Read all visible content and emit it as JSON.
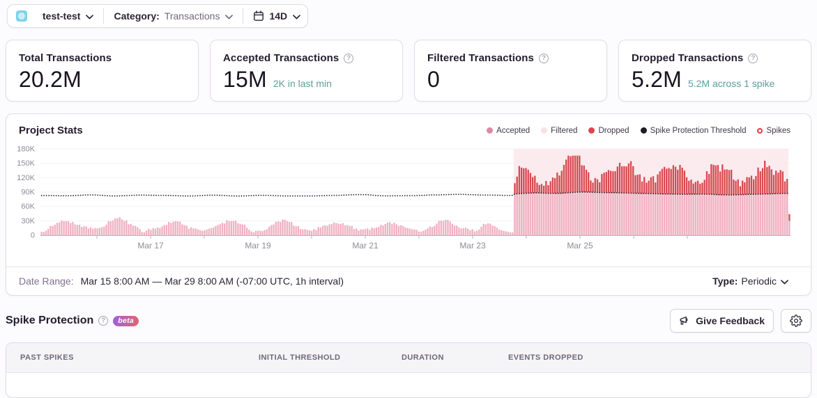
{
  "filter_bar": {
    "project": {
      "icon": "react-platform-icon",
      "name": "test-test"
    },
    "category_label": "Category:",
    "category_value": "Transactions",
    "date_range_value": "14D"
  },
  "cards": [
    {
      "title": "Total Transactions",
      "has_help": false,
      "value": "20.2M",
      "subtext": ""
    },
    {
      "title": "Accepted Transactions",
      "has_help": true,
      "value": "15M",
      "subtext": "2K in last min"
    },
    {
      "title": "Filtered Transactions",
      "has_help": true,
      "value": "0",
      "subtext": ""
    },
    {
      "title": "Dropped Transactions",
      "has_help": true,
      "value": "5.2M",
      "subtext": "5.2M across 1 spike"
    }
  ],
  "chart_panel": {
    "title": "Project Stats",
    "legend": [
      {
        "label": "Accepted",
        "marker": "dot",
        "color": "#da8ba2"
      },
      {
        "label": "Filtered",
        "marker": "dot",
        "color": "#f7e2e8"
      },
      {
        "label": "Dropped",
        "marker": "dot",
        "color": "#dd4550"
      },
      {
        "label": "Spike Protection Threshold",
        "marker": "dot",
        "color": "#1f1a24"
      },
      {
        "label": "Spikes",
        "marker": "ring",
        "color": "#e03e48"
      }
    ],
    "footer": {
      "date_range_label": "Date Range:",
      "date_range_value": "Mar 15 8:00 AM — Mar 29 8:00 AM (-07:00 UTC, 1h interval)",
      "type_label": "Type:",
      "type_value": "Periodic"
    }
  },
  "chart_data": {
    "type": "bar",
    "subtype": "stacked-hourly",
    "interval": "1h",
    "x_start": "Mar 15 8:00 AM",
    "x_end": "Mar 29 8:00 AM",
    "unit": "thousands of transactions",
    "ylim": [
      0,
      180
    ],
    "y_ticks": [
      {
        "value": 0,
        "label": "0"
      },
      {
        "value": 30,
        "label": "30K"
      },
      {
        "value": 60,
        "label": "60K"
      },
      {
        "value": 90,
        "label": "90K"
      },
      {
        "value": 120,
        "label": "120K"
      },
      {
        "value": 150,
        "label": "150K"
      },
      {
        "value": 180,
        "label": "180K"
      }
    ],
    "x_ticks": [
      {
        "day": "Mar 16",
        "label": ""
      },
      {
        "day": "Mar 17",
        "label": "Mar 17"
      },
      {
        "day": "Mar 18",
        "label": ""
      },
      {
        "day": "Mar 19",
        "label": "Mar 19"
      },
      {
        "day": "Mar 20",
        "label": ""
      },
      {
        "day": "Mar 21",
        "label": "Mar 21"
      },
      {
        "day": "Mar 22",
        "label": ""
      },
      {
        "day": "Mar 23",
        "label": "Mar 23"
      },
      {
        "day": "Mar 24",
        "label": ""
      },
      {
        "day": "Mar 25",
        "label": "Mar 25"
      },
      {
        "day": "Mar 26",
        "label": ""
      },
      {
        "day": "Mar 27",
        "label": ""
      }
    ],
    "spike_region": {
      "start_index": 212,
      "end_index": 334
    },
    "series": [
      {
        "name": "Accepted",
        "color": "#f0b0c1",
        "values": [
          7.1,
          6.9,
          9.2,
          12.8,
          19.3,
          18.9,
          21.8,
          25.7,
          26.6,
          30.6,
          29.2,
          29.2,
          29.5,
          25.5,
          27.6,
          22.7,
          21.3,
          21.7,
          17.1,
          18.7,
          18.3,
          13.8,
          16.4,
          13.4,
          15.0,
          14.0,
          15.2,
          16.7,
          17.9,
          21.9,
          29.2,
          28.9,
          30.7,
          35.3,
          34.8,
          37.6,
          33.0,
          29.7,
          30.7,
          22.7,
          23.6,
          19.9,
          19.6,
          16.7,
          12.6,
          6.8,
          6.0,
          9.6,
          13.5,
          11.1,
          14.7,
          13.7,
          15.9,
          15.0,
          18.3,
          21.2,
          21.7,
          27.7,
          25.5,
          28.0,
          28.9,
          28.8,
          28.4,
          22.6,
          21.2,
          19.8,
          13.2,
          16.4,
          14.0,
          14.1,
          12.3,
          10.5,
          9.0,
          10.3,
          11.9,
          13.5,
          14.7,
          16.0,
          19.0,
          21.3,
          23.1,
          25.8,
          24.4,
          31.4,
          29.5,
          29.2,
          29.6,
          29.9,
          24.8,
          23.7,
          22.5,
          22.0,
          15.5,
          11.5,
          8.0,
          6.0,
          9.0,
          9.6,
          9.2,
          8.6,
          10.6,
          12.4,
          17.8,
          21.4,
          22.5,
          28.1,
          28.9,
          27.7,
          32.5,
          32.3,
          29.3,
          27.7,
          27.4,
          19.9,
          18.6,
          19.0,
          12.6,
          11.9,
          12.6,
          11.1,
          10.2,
          9.1,
          12.8,
          10.7,
          16.6,
          16.1,
          19.4,
          20.4,
          19.5,
          22.7,
          23.2,
          26.6,
          25.4,
          24.2,
          23.5,
          25.3,
          20.5,
          20.9,
          19.4,
          19.3,
          12.9,
          14.0,
          9.8,
          11.9,
          11.9,
          12.7,
          14.1,
          11.0,
          15.8,
          14.2,
          16.5,
          17.0,
          21.5,
          20.1,
          23.3,
          26.3,
          27.1,
          23.3,
          26.1,
          22.7,
          19.5,
          20.9,
          19.2,
          16.0,
          14.8,
          13.8,
          12.4,
          12.0,
          11.3,
          7.8,
          7.4,
          9.0,
          11.4,
          14.3,
          18.2,
          16.9,
          19.4,
          24.1,
          30.0,
          30.5,
          29.8,
          32.0,
          32.0,
          28.7,
          23.9,
          20.2,
          19.9,
          15.9,
          14.0,
          14.4,
          15.5,
          13.4,
          10.3,
          12.6,
          7.8,
          9.2,
          11.8,
          17.5,
          23.7,
          22.5,
          24.8,
          23.8,
          19.9,
          18.8,
          15.8,
          11.7,
          10.4,
          9.1,
          8.0,
          7.1,
          6.0,
          6.0,
          86.0,
          86.3,
          86.6,
          86.9,
          87.2,
          87.5,
          87.8,
          88.0,
          88.1,
          88.2,
          88.2,
          88.1,
          88.0,
          87.8,
          87.6,
          87.4,
          87.3,
          87.2,
          87.2,
          87.2,
          87.4,
          87.6,
          87.9,
          88.2,
          88.5,
          88.9,
          89.2,
          89.5,
          89.7,
          89.9,
          90.0,
          90.0,
          90.0,
          89.9,
          89.7,
          89.6,
          89.4,
          89.2,
          89.0,
          88.9,
          88.8,
          88.7,
          88.7,
          88.6,
          88.6,
          88.5,
          88.4,
          88.2,
          88.1,
          88.0,
          87.9,
          87.8,
          87.7,
          87.6,
          87.5,
          87.4,
          87.3,
          87.1,
          87.0,
          86.9,
          86.8,
          86.6,
          86.5,
          86.4,
          86.3,
          86.2,
          86.1,
          86.0,
          86.0,
          85.9,
          85.8,
          85.8,
          85.7,
          85.6,
          85.5,
          85.4,
          85.4,
          85.4,
          85.5,
          85.5,
          85.6,
          85.7,
          85.7,
          85.8,
          85.8,
          85.7,
          85.7,
          85.5,
          85.3,
          85.1,
          84.9,
          84.6,
          84.4,
          84.2,
          84.1,
          84.0,
          83.9,
          84.0,
          84.1,
          84.2,
          84.3,
          84.5,
          84.7,
          84.9,
          85.0,
          85.2,
          85.3,
          85.4,
          85.5,
          85.6,
          85.7,
          85.8,
          86.0,
          86.1,
          86.2,
          86.3,
          86.5,
          86.6,
          86.7,
          86.8,
          86.9,
          87.0,
          87.0,
          30.0
        ]
      },
      {
        "name": "Dropped",
        "color": "#d7494f",
        "values": [
          0,
          0,
          0,
          0,
          0,
          0,
          0,
          0,
          0,
          0,
          0,
          0,
          0,
          0,
          0,
          0,
          0,
          0,
          0,
          0,
          0,
          0,
          0,
          0,
          0,
          0,
          0,
          0,
          0,
          0,
          0,
          0,
          0,
          0,
          0,
          0,
          0,
          0,
          0,
          0,
          0,
          0,
          0,
          0,
          0,
          0,
          0,
          0,
          0,
          0,
          0,
          0,
          0,
          0,
          0,
          0,
          0,
          0,
          0,
          0,
          0,
          0,
          0,
          0,
          0,
          0,
          0,
          0,
          0,
          0,
          0,
          0,
          0,
          0,
          0,
          0,
          0,
          0,
          0,
          0,
          0,
          0,
          0,
          0,
          0,
          0,
          0,
          0,
          0,
          0,
          0,
          0,
          0,
          0,
          0,
          0,
          0,
          0,
          0,
          0,
          0,
          0,
          0,
          0,
          0,
          0,
          0,
          0,
          0,
          0,
          0,
          0,
          0,
          0,
          0,
          0,
          0,
          0,
          0,
          0,
          0,
          0,
          0,
          0,
          0,
          0,
          0,
          0,
          0,
          0,
          0,
          0,
          0,
          0,
          0,
          0,
          0,
          0,
          0,
          0,
          0,
          0,
          0,
          0,
          0,
          0,
          0,
          0,
          0,
          0,
          0,
          0,
          0,
          0,
          0,
          0,
          0,
          0,
          0,
          0,
          0,
          0,
          0,
          0,
          0,
          0,
          0,
          0,
          0,
          0,
          0,
          0,
          0,
          0,
          0,
          0,
          0,
          0,
          0,
          0,
          0,
          0,
          0,
          0,
          0,
          0,
          0,
          0,
          0,
          0,
          0,
          0,
          0,
          0,
          0,
          0,
          0,
          0,
          0,
          0,
          0,
          0,
          0,
          0,
          0,
          0,
          0,
          0,
          0,
          0,
          0,
          0,
          22.5,
          36.0,
          57.6,
          54.1,
          52.4,
          52.6,
          48.9,
          42.0,
          33.0,
          35.8,
          21.2,
          16.7,
          18.9,
          15.4,
          25.5,
          16.9,
          25.2,
          33.2,
          31.9,
          43.5,
          37.2,
          46.8,
          58.8,
          69.5,
          77.5,
          75.6,
          76.8,
          76.5,
          76.3,
          76.1,
          55.9,
          55.4,
          46.5,
          41.4,
          24.4,
          20.1,
          29.9,
          27.4,
          21.4,
          38.7,
          41.5,
          43.3,
          47.1,
          45.7,
          44.6,
          45.0,
          54.8,
          62.8,
          55.6,
          55.9,
          55.6,
          62.0,
          66.7,
          56.4,
          37.6,
          38.7,
          39.6,
          25.0,
          34.4,
          22.6,
          26.9,
          34.3,
          36.5,
          23.6,
          40.4,
          47.0,
          52.4,
          56.5,
          52.7,
          54.3,
          52.3,
          60.2,
          57.2,
          51.1,
          61.1,
          55.3,
          49.3,
          35.4,
          28.1,
          30.4,
          22.3,
          25.6,
          27.8,
          21.4,
          23.7,
          29.8,
          47.8,
          42.4,
          62.9,
          61.8,
          60.5,
          61.8,
          48.5,
          63.5,
          52.8,
          53.3,
          52.0,
          52.5,
          31.9,
          29.2,
          32.1,
          17.7,
          29.1,
          25.4,
          36.2,
          35.2,
          38.8,
          31.2,
          38.0,
          55.6,
          47.6,
          54.1,
          69.3,
          55.9,
          58.5,
          51.1,
          39.3,
          48.1,
          43.6,
          49.0,
          46.0,
          25.2,
          30.5,
          14.0
        ]
      },
      {
        "name": "Spike Protection Threshold",
        "color": "#1f1a24",
        "style": "dotted-line",
        "values": [
          82.8,
          82.8,
          82.7,
          82.7,
          82.6,
          82.5,
          82.4,
          82.3,
          82.2,
          82.2,
          82.1,
          82.1,
          82.1,
          82.3,
          82.5,
          82.7,
          83.0,
          83.2,
          83.5,
          83.7,
          83.9,
          84.1,
          84.1,
          84.0,
          83.9,
          83.7,
          83.4,
          83.1,
          82.8,
          82.5,
          82.2,
          82.0,
          81.8,
          81.8,
          81.8,
          82.0,
          82.1,
          82.3,
          82.6,
          82.8,
          83.1,
          83.3,
          83.5,
          83.6,
          83.6,
          83.6,
          83.6,
          83.5,
          83.4,
          83.3,
          83.3,
          83.2,
          83.1,
          83.0,
          83.0,
          83.0,
          82.9,
          82.9,
          82.7,
          82.6,
          82.4,
          82.3,
          82.1,
          82.0,
          81.8,
          81.8,
          81.7,
          81.8,
          81.9,
          82.1,
          82.3,
          82.5,
          82.8,
          83.0,
          83.2,
          83.4,
          83.5,
          83.5,
          83.5,
          83.4,
          83.2,
          83.0,
          82.7,
          82.5,
          82.2,
          82.0,
          81.8,
          81.7,
          81.6,
          81.7,
          81.8,
          81.9,
          82.1,
          82.3,
          82.6,
          82.8,
          82.9,
          83.1,
          83.2,
          83.2,
          83.2,
          83.1,
          83.0,
          82.8,
          82.6,
          82.4,
          82.2,
          82.0,
          81.9,
          81.8,
          81.8,
          81.8,
          81.8,
          81.8,
          81.8,
          81.8,
          81.8,
          81.8,
          81.8,
          81.9,
          81.9,
          81.9,
          81.9,
          82.0,
          82.1,
          82.3,
          82.4,
          82.6,
          82.8,
          83.0,
          83.1,
          83.2,
          83.2,
          83.2,
          83.3,
          83.5,
          83.7,
          83.9,
          84.1,
          84.3,
          84.5,
          84.7,
          84.8,
          84.8,
          84.7,
          84.6,
          84.3,
          84.0,
          83.6,
          83.2,
          82.8,
          82.5,
          82.2,
          82.1,
          82.0,
          82.0,
          82.0,
          82.1,
          82.1,
          82.2,
          82.2,
          82.3,
          82.3,
          82.4,
          82.4,
          82.4,
          82.4,
          82.5,
          82.7,
          82.9,
          83.1,
          83.3,
          83.5,
          83.7,
          83.9,
          84.0,
          84.0,
          84.0,
          84.1,
          84.2,
          84.4,
          84.6,
          84.7,
          84.9,
          85.1,
          85.2,
          85.3,
          85.3,
          85.3,
          85.2,
          85.0,
          84.8,
          84.7,
          84.4,
          84.3,
          84.1,
          83.9,
          83.8,
          83.8,
          83.8,
          83.7,
          83.7,
          83.6,
          83.5,
          83.4,
          83.3,
          83.2,
          83.1,
          83.1,
          83.1,
          83.1,
          83.3,
          86.0,
          86.3,
          86.6,
          86.9,
          87.2,
          87.5,
          87.8,
          88.0,
          88.1,
          88.2,
          88.2,
          88.1,
          88.0,
          87.8,
          87.6,
          87.4,
          87.3,
          87.2,
          87.2,
          87.2,
          87.4,
          87.6,
          87.9,
          88.2,
          88.5,
          88.9,
          89.2,
          89.5,
          89.7,
          89.9,
          90.0,
          90.0,
          90.0,
          89.9,
          89.7,
          89.6,
          89.4,
          89.2,
          89.0,
          88.9,
          88.8,
          88.7,
          88.7,
          88.6,
          88.6,
          88.5,
          88.4,
          88.2,
          88.1,
          88.0,
          87.9,
          87.8,
          87.7,
          87.6,
          87.5,
          87.4,
          87.3,
          87.1,
          87.0,
          86.9,
          86.8,
          86.6,
          86.5,
          86.4,
          86.3,
          86.2,
          86.1,
          86.0,
          86.0,
          85.9,
          85.8,
          85.8,
          85.7,
          85.6,
          85.5,
          85.4,
          85.4,
          85.4,
          85.5,
          85.5,
          85.6,
          85.7,
          85.7,
          85.8,
          85.8,
          85.7,
          85.7,
          85.5,
          85.3,
          85.1,
          84.9,
          84.6,
          84.4,
          84.2,
          84.1,
          84.0,
          83.9,
          84.0,
          84.1,
          84.2,
          84.3,
          84.5,
          84.7,
          84.9,
          85.0,
          85.2,
          85.3,
          85.4,
          85.5,
          85.6,
          85.7,
          85.8,
          86.0,
          86.1,
          86.2,
          86.3,
          86.5,
          86.6,
          86.7,
          86.8,
          86.9,
          87.0,
          87.0,
          87.1
        ]
      }
    ],
    "colors": {
      "spike_shade": "#fcebee",
      "grid": "#f2f0f4",
      "axis": "#b7b2bd",
      "tick_label": "#8f8a97"
    }
  },
  "spike_section": {
    "title": "Spike Protection",
    "beta_badge": "beta",
    "feedback_button": "Give Feedback"
  },
  "table": {
    "columns": [
      "PAST SPIKES",
      "INITIAL THRESHOLD",
      "DURATION",
      "EVENTS DROPPED"
    ]
  },
  "icons": {
    "help_glyph": "?",
    "project": "react-platform-icon",
    "calendar": "calendar-icon",
    "chevron": "chevron-down-icon",
    "help": "question-mark-circle-icon",
    "megaphone": "megaphone-icon",
    "settings": "gear-icon",
    "spikes_marker": "ring-icon"
  },
  "colors": {
    "accepted_bar": "#f0b0c1",
    "dropped_bar": "#d7494f",
    "spike_shade": "#fcebee",
    "threshold_line": "#1f1a24",
    "subtext_teal": "#58a09a",
    "beta_gradient": [
      "#9a63e0",
      "#e5646a"
    ],
    "panel_border": "#e0dce5",
    "text_dark": "#2b2233",
    "text_gray": "#80708f"
  }
}
